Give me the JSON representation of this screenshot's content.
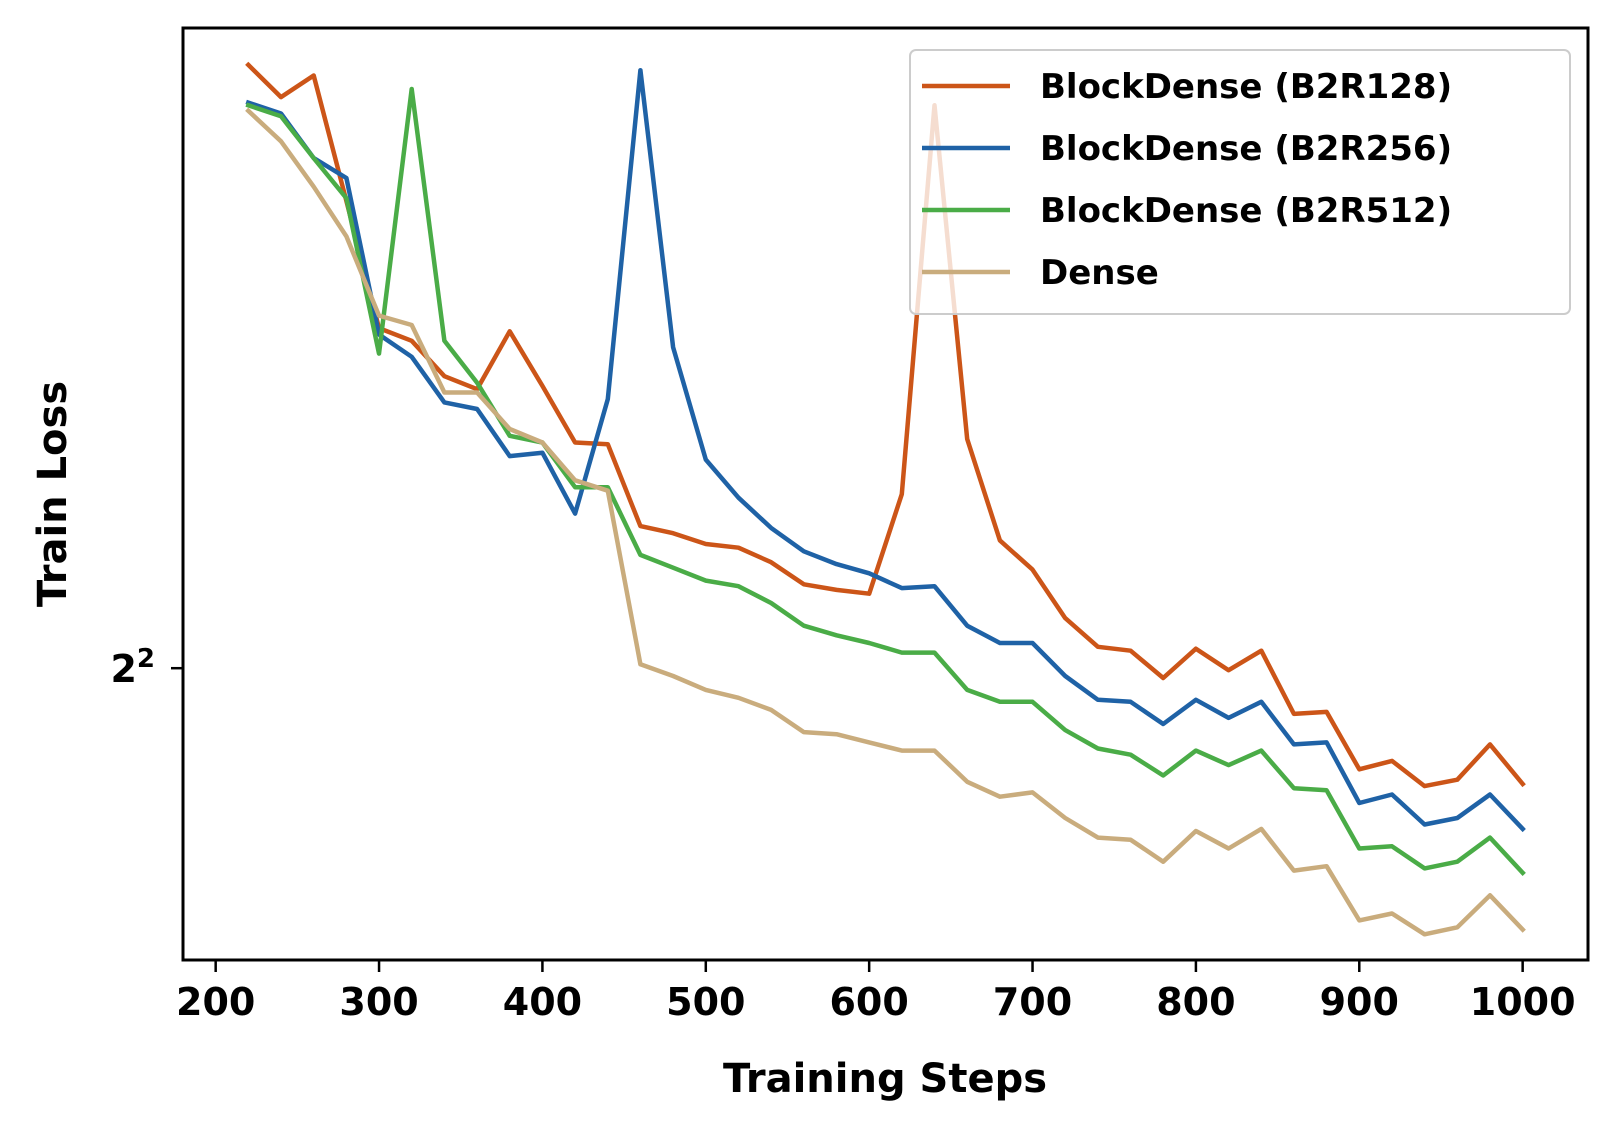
{
  "chart_data": {
    "type": "line",
    "xlabel": "Training Steps",
    "ylabel": "Train Loss",
    "xlim": [
      180,
      1040
    ],
    "ylim": [
      3.32,
      6.02
    ],
    "yscale": "log2",
    "x_ticks": [
      {
        "value": 200,
        "label": "200"
      },
      {
        "value": 300,
        "label": "300"
      },
      {
        "value": 400,
        "label": "400"
      },
      {
        "value": 500,
        "label": "500"
      },
      {
        "value": 600,
        "label": "600"
      },
      {
        "value": 700,
        "label": "700"
      },
      {
        "value": 800,
        "label": "800"
      },
      {
        "value": 900,
        "label": "900"
      },
      {
        "value": 1000,
        "label": "1000"
      }
    ],
    "y_ticks": [
      {
        "value": 4,
        "base": "2",
        "exp": "2"
      }
    ],
    "legend_position": "top-right",
    "grid": false,
    "x": [
      220,
      240,
      260,
      280,
      300,
      320,
      340,
      360,
      380,
      400,
      420,
      440,
      460,
      480,
      500,
      520,
      540,
      560,
      580,
      600,
      620,
      640,
      660,
      680,
      700,
      720,
      740,
      760,
      780,
      800,
      820,
      840,
      860,
      880,
      900,
      920,
      940,
      960,
      980,
      1000
    ],
    "series": [
      {
        "name": "BlockDense (B2R128)",
        "color": "#cc5518",
        "values": [
          5.88,
          5.76,
          5.84,
          5.39,
          4.97,
          4.93,
          4.82,
          4.78,
          4.96,
          4.79,
          4.62,
          4.615,
          4.38,
          4.36,
          4.33,
          4.32,
          4.28,
          4.22,
          4.205,
          4.195,
          4.47,
          5.73,
          4.63,
          4.34,
          4.26,
          4.13,
          4.055,
          4.045,
          3.975,
          4.05,
          3.995,
          4.045,
          3.885,
          3.89,
          3.75,
          3.77,
          3.71,
          3.725,
          3.81,
          3.715
        ]
      },
      {
        "name": "BlockDense (B2R256)",
        "color": "#1f62a6",
        "values": [
          5.74,
          5.7,
          5.54,
          5.47,
          4.95,
          4.88,
          4.74,
          4.72,
          4.58,
          4.59,
          4.415,
          4.75,
          5.86,
          4.91,
          4.57,
          4.46,
          4.375,
          4.31,
          4.275,
          4.25,
          4.21,
          4.215,
          4.11,
          4.065,
          4.065,
          3.98,
          3.92,
          3.915,
          3.86,
          3.92,
          3.875,
          3.915,
          3.81,
          3.815,
          3.67,
          3.69,
          3.62,
          3.635,
          3.69,
          3.61
        ]
      },
      {
        "name": "BlockDense (B2R512)",
        "color": "#4aac47",
        "values": [
          5.73,
          5.69,
          5.54,
          5.4,
          4.89,
          5.79,
          4.93,
          4.8,
          4.64,
          4.62,
          4.49,
          4.49,
          4.3,
          4.265,
          4.23,
          4.215,
          4.17,
          4.11,
          4.085,
          4.065,
          4.04,
          4.04,
          3.945,
          3.915,
          3.915,
          3.845,
          3.8,
          3.785,
          3.735,
          3.795,
          3.76,
          3.795,
          3.705,
          3.7,
          3.565,
          3.57,
          3.52,
          3.535,
          3.59,
          3.51
        ]
      },
      {
        "name": "Dense",
        "color": "#c9ac7d",
        "values": [
          5.71,
          5.6,
          5.44,
          5.27,
          5.01,
          4.98,
          4.77,
          4.77,
          4.66,
          4.62,
          4.51,
          4.48,
          4.01,
          3.98,
          3.945,
          3.925,
          3.895,
          3.84,
          3.835,
          3.815,
          3.795,
          3.795,
          3.72,
          3.685,
          3.695,
          3.635,
          3.59,
          3.585,
          3.535,
          3.605,
          3.565,
          3.61,
          3.515,
          3.525,
          3.405,
          3.42,
          3.375,
          3.39,
          3.46,
          3.385
        ]
      }
    ]
  }
}
